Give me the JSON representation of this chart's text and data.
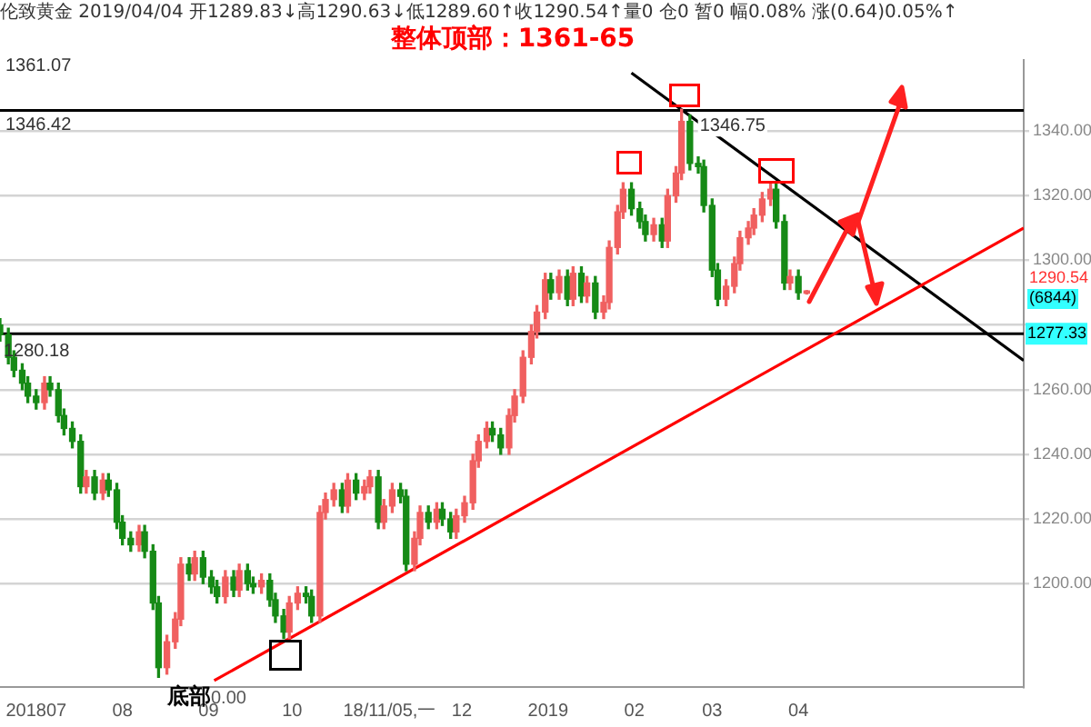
{
  "chart_data": {
    "type": "candlestick",
    "title": "伦致黄金 2019/04/04 开1289.83↓高1290.63↓低1289.60↑收1290.54↑量0 仓0 暂0 幅0.08% 涨(0.64)0.05%↑",
    "annotations": [
      "整体顶部：1361-65",
      "1361.07",
      "1280.18",
      {
        "text": "1346.75",
        "x": "2019-02-18",
        "y": 1346.75
      },
      "底部",
      "0.00",
      "(6844)",
      "1290.54"
    ],
    "x": [
      "2018-06-18",
      "2018-06-21",
      "2018-06-23",
      "2018-06-26",
      "2018-06-28",
      "2018-07-01",
      "2018-07-04",
      "2018-07-06",
      "2018-07-09",
      "2018-07-11",
      "2018-07-14",
      "2018-07-17",
      "2018-07-19",
      "2018-07-22",
      "2018-07-25",
      "2018-07-27",
      "2018-07-30",
      "2018-08-01",
      "2018-08-04",
      "2018-08-07",
      "2018-08-09",
      "2018-08-12",
      "2018-08-14",
      "2018-08-17",
      "2018-08-20",
      "2018-08-22",
      "2018-08-25",
      "2018-08-27",
      "2018-08-30",
      "2018-09-02",
      "2018-09-04",
      "2018-09-07",
      "2018-09-10",
      "2018-09-12",
      "2018-09-15",
      "2018-09-17",
      "2018-09-20",
      "2018-09-23",
      "2018-09-25",
      "2018-09-28",
      "2018-09-30",
      "2018-10-03",
      "2018-10-06",
      "2018-10-08",
      "2018-10-11",
      "2018-10-13",
      "2018-10-16",
      "2018-10-19",
      "2018-10-21",
      "2018-10-24",
      "2018-10-27",
      "2018-10-29",
      "2018-11-01",
      "2018-11-03",
      "2018-11-06",
      "2018-11-09",
      "2018-11-11",
      "2018-11-14",
      "2018-11-16",
      "2018-11-19",
      "2018-11-22",
      "2018-11-24",
      "2018-11-27",
      "2018-11-29",
      "2018-12-02",
      "2018-12-05",
      "2018-12-07",
      "2018-12-10",
      "2018-12-12",
      "2018-12-15",
      "2018-12-18",
      "2018-12-20",
      "2018-12-23",
      "2018-12-26",
      "2018-12-28",
      "2018-12-31",
      "2019-01-02",
      "2019-01-05",
      "2019-01-08",
      "2019-01-10",
      "2019-01-13",
      "2019-01-15",
      "2019-01-18",
      "2019-01-21",
      "2019-01-23",
      "2019-01-26",
      "2019-01-28",
      "2019-01-31",
      "2019-02-03",
      "2019-02-05",
      "2019-02-08",
      "2019-02-11",
      "2019-02-13",
      "2019-02-16",
      "2019-02-18",
      "2019-02-21",
      "2019-02-24",
      "2019-02-26",
      "2019-03-01",
      "2019-03-03",
      "2019-03-06",
      "2019-03-09",
      "2019-03-11",
      "2019-03-14",
      "2019-03-16",
      "2019-03-19",
      "2019-03-22",
      "2019-03-24",
      "2019-03-27",
      "2019-03-29",
      "2019-04-01",
      "2019-04-04"
    ],
    "ohlc": [
      [
        1280,
        1282,
        1275,
        1277
      ],
      [
        1277,
        1279,
        1268,
        1270
      ],
      [
        1270,
        1272,
        1264,
        1266
      ],
      [
        1266,
        1268,
        1260,
        1262
      ],
      [
        1262,
        1264,
        1256,
        1258
      ],
      [
        1258,
        1260,
        1254,
        1256
      ],
      [
        1256,
        1264,
        1254,
        1262
      ],
      [
        1262,
        1264,
        1258,
        1260
      ],
      [
        1260,
        1262,
        1250,
        1252
      ],
      [
        1252,
        1254,
        1246,
        1248
      ],
      [
        1248,
        1250,
        1242,
        1244
      ],
      [
        1244,
        1246,
        1228,
        1230
      ],
      [
        1230,
        1235,
        1228,
        1233
      ],
      [
        1233,
        1235,
        1226,
        1228
      ],
      [
        1228,
        1234,
        1226,
        1232
      ],
      [
        1232,
        1234,
        1227,
        1229
      ],
      [
        1229,
        1231,
        1217,
        1219
      ],
      [
        1219,
        1221,
        1212,
        1214
      ],
      [
        1214,
        1216,
        1210,
        1212
      ],
      [
        1212,
        1218,
        1210,
        1216
      ],
      [
        1216,
        1218,
        1208,
        1210
      ],
      [
        1210,
        1212,
        1192,
        1194
      ],
      [
        1194,
        1196,
        1171,
        1174
      ],
      [
        1174,
        1184,
        1172,
        1182
      ],
      [
        1182,
        1191,
        1180,
        1189
      ],
      [
        1189,
        1208,
        1187,
        1206
      ],
      [
        1206,
        1208,
        1201,
        1203
      ],
      [
        1203,
        1210,
        1201,
        1208
      ],
      [
        1208,
        1210,
        1200,
        1202
      ],
      [
        1202,
        1204,
        1197,
        1199
      ],
      [
        1199,
        1201,
        1194,
        1196
      ],
      [
        1196,
        1204,
        1194,
        1202
      ],
      [
        1202,
        1204,
        1196,
        1198
      ],
      [
        1198,
        1206,
        1196,
        1204
      ],
      [
        1204,
        1206,
        1198,
        1200
      ],
      [
        1200,
        1202,
        1197,
        1199
      ],
      [
        1199,
        1203,
        1197,
        1201
      ],
      [
        1201,
        1203,
        1193,
        1195
      ],
      [
        1195,
        1197,
        1188,
        1190
      ],
      [
        1190,
        1192,
        1183,
        1185
      ],
      [
        1185,
        1196,
        1183,
        1194
      ],
      [
        1194,
        1199,
        1192,
        1197
      ],
      [
        1197,
        1199,
        1194,
        1196
      ],
      [
        1196,
        1198,
        1188,
        1190
      ],
      [
        1190,
        1224,
        1188,
        1222
      ],
      [
        1222,
        1228,
        1220,
        1226
      ],
      [
        1226,
        1231,
        1224,
        1229
      ],
      [
        1229,
        1231,
        1222,
        1224
      ],
      [
        1224,
        1234,
        1222,
        1232
      ],
      [
        1232,
        1234,
        1226,
        1228
      ],
      [
        1228,
        1232,
        1226,
        1230
      ],
      [
        1230,
        1235,
        1228,
        1233
      ],
      [
        1233,
        1235,
        1217,
        1219
      ],
      [
        1219,
        1226,
        1217,
        1224
      ],
      [
        1224,
        1231,
        1222,
        1229
      ],
      [
        1229,
        1231,
        1225,
        1227
      ],
      [
        1227,
        1229,
        1204,
        1206
      ],
      [
        1206,
        1216,
        1204,
        1214
      ],
      [
        1214,
        1224,
        1212,
        1222
      ],
      [
        1222,
        1224,
        1217,
        1219
      ],
      [
        1219,
        1225,
        1217,
        1223
      ],
      [
        1223,
        1225,
        1218,
        1220
      ],
      [
        1220,
        1222,
        1214,
        1216
      ],
      [
        1216,
        1223,
        1214,
        1221
      ],
      [
        1221,
        1227,
        1219,
        1225
      ],
      [
        1225,
        1240,
        1223,
        1238
      ],
      [
        1238,
        1246,
        1236,
        1244
      ],
      [
        1244,
        1250,
        1242,
        1248
      ],
      [
        1248,
        1250,
        1244,
        1246
      ],
      [
        1246,
        1248,
        1240,
        1242
      ],
      [
        1242,
        1254,
        1240,
        1252
      ],
      [
        1252,
        1260,
        1250,
        1258
      ],
      [
        1258,
        1272,
        1256,
        1270
      ],
      [
        1270,
        1280,
        1268,
        1278
      ],
      [
        1278,
        1286,
        1276,
        1284
      ],
      [
        1284,
        1296,
        1282,
        1294
      ],
      [
        1294,
        1296,
        1288,
        1290
      ],
      [
        1290,
        1297,
        1288,
        1295
      ],
      [
        1295,
        1297,
        1286,
        1288
      ],
      [
        1288,
        1298,
        1286,
        1296
      ],
      [
        1296,
        1298,
        1287,
        1289
      ],
      [
        1289,
        1295,
        1287,
        1293
      ],
      [
        1293,
        1295,
        1282,
        1284
      ],
      [
        1284,
        1289,
        1282,
        1287
      ],
      [
        1287,
        1306,
        1285,
        1304
      ],
      [
        1304,
        1317,
        1302,
        1315
      ],
      [
        1315,
        1324,
        1313,
        1322
      ],
      [
        1322,
        1324,
        1314,
        1316
      ],
      [
        1316,
        1318,
        1310,
        1312
      ],
      [
        1312,
        1314,
        1306,
        1308
      ],
      [
        1308,
        1313,
        1306,
        1311
      ],
      [
        1311,
        1313,
        1304,
        1306
      ],
      [
        1306,
        1322,
        1304,
        1320
      ],
      [
        1320,
        1329,
        1318,
        1327
      ],
      [
        1327,
        1346.75,
        1325,
        1343
      ],
      [
        1343,
        1345,
        1328,
        1330
      ],
      [
        1330,
        1332,
        1327,
        1329
      ],
      [
        1329,
        1331,
        1315,
        1317
      ],
      [
        1317,
        1319,
        1295,
        1297
      ],
      [
        1297,
        1299,
        1286,
        1288
      ],
      [
        1288,
        1294,
        1286,
        1292
      ],
      [
        1292,
        1301,
        1290,
        1299
      ],
      [
        1299,
        1309,
        1297,
        1307
      ],
      [
        1307,
        1312,
        1305,
        1310
      ],
      [
        1310,
        1316,
        1308,
        1314
      ],
      [
        1314,
        1321,
        1312,
        1319
      ],
      [
        1319,
        1324,
        1317,
        1322
      ],
      [
        1322,
        1324,
        1310,
        1312
      ],
      [
        1312,
        1314,
        1291,
        1293
      ],
      [
        1293,
        1297,
        1291,
        1295
      ],
      [
        1295,
        1297,
        1288,
        1290
      ],
      [
        1289.83,
        1290.63,
        1289.6,
        1290.54
      ]
    ],
    "series": [
      {
        "type": "line",
        "x": [
          "2018-09-03",
          "2019-06-21"
        ],
        "values": [
          1170,
          1310
        ],
        "color": "#ff0000"
      },
      {
        "type": "line",
        "x": [
          "2019-01-31",
          "2019-06-21"
        ],
        "values": [
          1358,
          1269
        ],
        "color": "#000000"
      }
    ],
    "xlim": [
      "2018-06-18",
      "2019-06-21"
    ],
    "xticks": [
      {
        "value": "2018-07-01",
        "label": "201807"
      },
      {
        "value": "2018-08-01",
        "label": "08"
      },
      {
        "value": "2018-09-01",
        "label": "09"
      },
      {
        "value": "2018-10-01",
        "label": "10"
      },
      {
        "value": "2018-11-05",
        "label": "18/11/05,一"
      },
      {
        "value": "2018-12-01",
        "label": "12"
      },
      {
        "value": "2019-01-01",
        "label": "2019"
      },
      {
        "value": "2019-02-01",
        "label": "02"
      },
      {
        "value": "2019-03-01",
        "label": "03"
      },
      {
        "value": "2019-04-01",
        "label": "04"
      }
    ],
    "ylim": [
      1168,
      1362
    ],
    "yticks": [
      {
        "value": 1200,
        "label": "1200.00"
      },
      {
        "value": 1220,
        "label": "1220.00"
      },
      {
        "value": 1240,
        "label": "1240.00"
      },
      {
        "value": 1260,
        "label": "1260.00"
      },
      {
        "value": 1280,
        "label": null
      },
      {
        "value": 1300,
        "label": "1300.00"
      },
      {
        "value": 1320,
        "label": "1320.00"
      },
      {
        "value": 1340,
        "label": "1340.00"
      }
    ],
    "ref_lines": [
      {
        "axis": "y",
        "value": 1346.42,
        "label": "1346.42",
        "color": "#000000"
      },
      {
        "axis": "y",
        "value": 1277.33,
        "label": "1277.33",
        "color": "#000000"
      }
    ],
    "grid": "y",
    "legend": false
  }
}
